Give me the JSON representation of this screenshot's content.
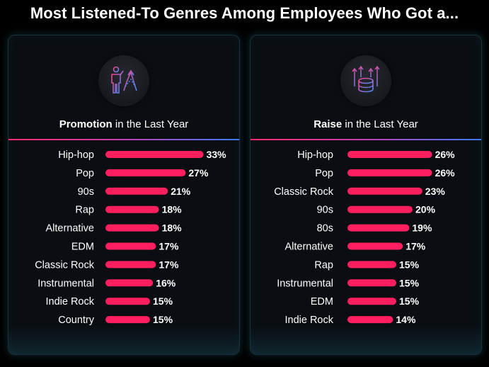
{
  "title": "Most Listened-To Genres Among Employees Who Got a...",
  "colors": {
    "bar": "#ff1f5f",
    "background": "#000000",
    "panel": "#0a0e12"
  },
  "panels": [
    {
      "icon": "person-growth-icon",
      "subtitle_bold": "Promotion",
      "subtitle_rest": " in the Last Year"
    },
    {
      "icon": "coins-growth-icon",
      "subtitle_bold": "Raise",
      "subtitle_rest": " in the Last Year"
    }
  ],
  "chart_data": [
    {
      "type": "bar",
      "orientation": "horizontal",
      "title": "Promotion in the Last Year",
      "categories": [
        "Hip-hop",
        "Pop",
        "90s",
        "Rap",
        "Alternative",
        "EDM",
        "Classic Rock",
        "Instrumental",
        "Indie Rock",
        "Country"
      ],
      "values": [
        33,
        27,
        21,
        18,
        18,
        17,
        17,
        16,
        15,
        15
      ],
      "labels": [
        "33%",
        "27%",
        "21%",
        "18%",
        "18%",
        "17%",
        "17%",
        "16%",
        "15%",
        "15%"
      ],
      "unit": "%"
    },
    {
      "type": "bar",
      "orientation": "horizontal",
      "title": "Raise in the Last Year",
      "categories": [
        "Hip-hop",
        "Pop",
        "Classic Rock",
        "90s",
        "80s",
        "Alternative",
        "Rap",
        "Instrumental",
        "EDM",
        "Indie Rock"
      ],
      "values": [
        26,
        26,
        23,
        20,
        19,
        17,
        15,
        15,
        15,
        14
      ],
      "labels": [
        "26%",
        "26%",
        "23%",
        "20%",
        "19%",
        "17%",
        "15%",
        "15%",
        "15%",
        "14%"
      ],
      "unit": "%"
    }
  ]
}
